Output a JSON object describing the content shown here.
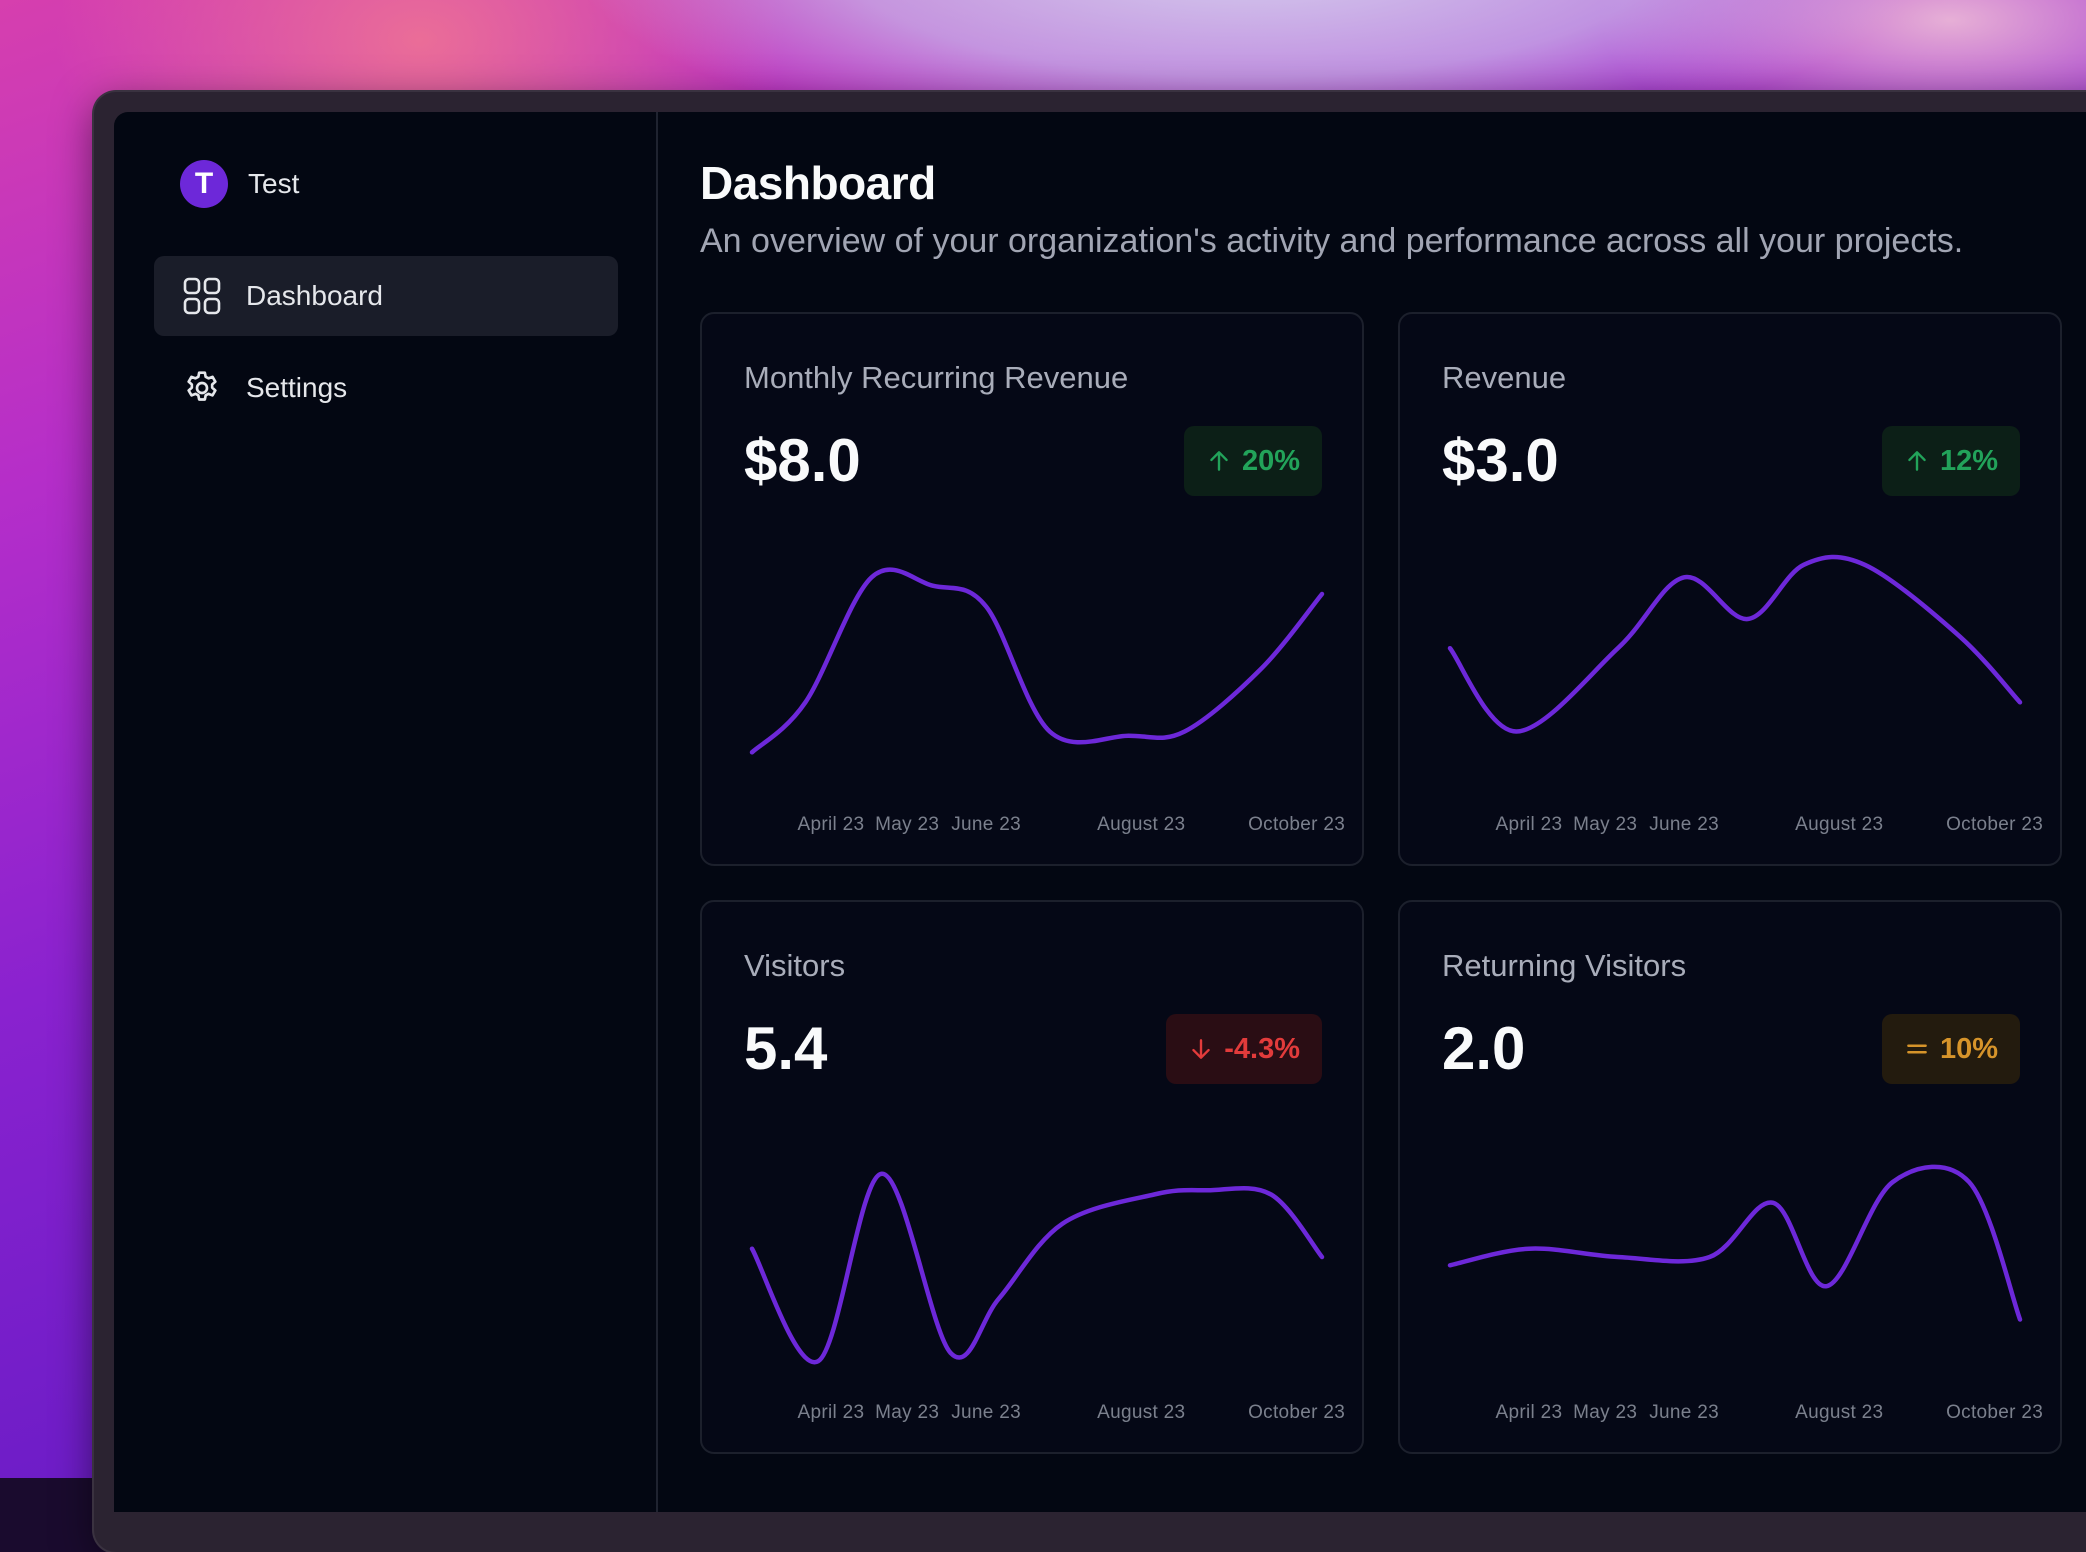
{
  "sidebar": {
    "org": {
      "initial": "T",
      "name": "Test"
    },
    "items": [
      {
        "label": "Dashboard",
        "icon": "grid-icon",
        "active": true
      },
      {
        "label": "Settings",
        "icon": "gear-icon",
        "active": false
      }
    ]
  },
  "main": {
    "title": "Dashboard",
    "subtitle": "An overview of your organization's activity and performance across all your projects."
  },
  "colors": {
    "line": "#6d28d9",
    "accent": "#6d28d9",
    "up": "#22a35a",
    "down": "#e23b3b",
    "flat": "#d6942a"
  },
  "cards": [
    {
      "title": "Monthly Recurring Revenue",
      "value": "$8.0",
      "badge": {
        "text": "20%",
        "trend": "up",
        "icon": "arrow-up-icon"
      },
      "chart_data": {
        "type": "line",
        "x": [
          "2023-03-15",
          "2023-04-05",
          "2023-05-01",
          "2023-05-25",
          "2023-06-15",
          "2023-07-10",
          "2023-08-10",
          "2023-09-01",
          "2023-10-01",
          "2023-10-25"
        ],
        "y": [
          1.0,
          2.2,
          5.2,
          5.0,
          4.5,
          1.5,
          1.4,
          1.5,
          3.0,
          4.8
        ],
        "xticks": [
          "April 23",
          "May 23",
          "June 23",
          "August 23",
          "October 23"
        ],
        "ylim": [
          0,
          6
        ]
      }
    },
    {
      "title": "Revenue",
      "value": "$3.0",
      "badge": {
        "text": "12%",
        "trend": "up",
        "icon": "arrow-up-icon"
      },
      "chart_data": {
        "type": "line",
        "x": [
          "2023-03-15",
          "2023-04-10",
          "2023-05-20",
          "2023-06-15",
          "2023-07-10",
          "2023-08-01",
          "2023-08-25",
          "2023-10-01",
          "2023-10-25"
        ],
        "y": [
          3.5,
          1.5,
          3.5,
          5.2,
          4.2,
          5.5,
          5.5,
          3.8,
          2.2
        ],
        "xticks": [
          "April 23",
          "May 23",
          "June 23",
          "August 23",
          "October 23"
        ],
        "ylim": [
          0,
          6
        ]
      }
    },
    {
      "title": "Visitors",
      "value": "5.4",
      "badge": {
        "text": "-4.3%",
        "trend": "down",
        "icon": "arrow-down-icon"
      },
      "chart_data": {
        "type": "line",
        "x": [
          "2023-03-15",
          "2023-04-10",
          "2023-05-05",
          "2023-06-01",
          "2023-06-20",
          "2023-07-15",
          "2023-08-20",
          "2023-09-10",
          "2023-10-05",
          "2023-10-25"
        ],
        "y": [
          3.2,
          0.5,
          5.0,
          0.7,
          2.0,
          3.8,
          4.5,
          4.6,
          4.5,
          3.0
        ],
        "xticks": [
          "April 23",
          "May 23",
          "June 23",
          "August 23",
          "October 23"
        ],
        "ylim": [
          0,
          6
        ]
      }
    },
    {
      "title": "Returning Visitors",
      "value": "2.0",
      "badge": {
        "text": "10%",
        "trend": "flat",
        "icon": "equals-icon"
      },
      "chart_data": {
        "type": "line",
        "x": [
          "2023-03-15",
          "2023-04-15",
          "2023-05-20",
          "2023-06-25",
          "2023-07-20",
          "2023-08-10",
          "2023-09-05",
          "2023-10-05",
          "2023-10-25"
        ],
        "y": [
          2.8,
          3.2,
          3.0,
          3.0,
          4.3,
          2.3,
          4.8,
          4.8,
          1.5
        ],
        "xticks": [
          "April 23",
          "May 23",
          "June 23",
          "August 23",
          "October 23"
        ],
        "ylim": [
          0,
          6
        ]
      }
    }
  ]
}
